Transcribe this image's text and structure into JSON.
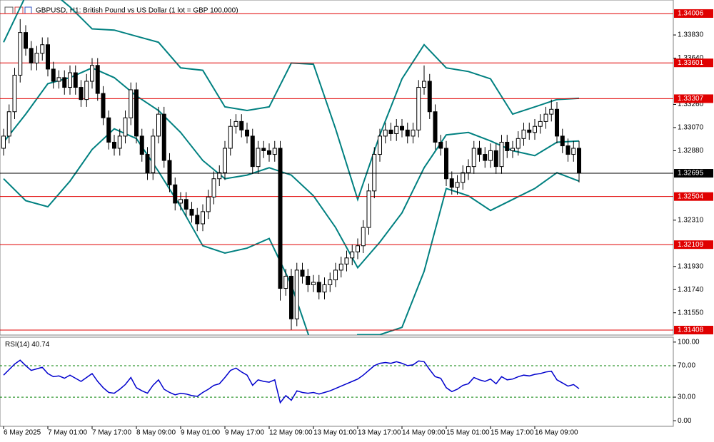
{
  "chart_data": {
    "type": "candlestick",
    "title": "GBPUSD, H1:  British Pound vs US Dollar (1 lot = GBP 100,000)",
    "open": [
      1.329,
      1.33,
      1.332,
      1.335,
      1.3385,
      1.3372,
      1.336,
      1.3368,
      1.3375,
      1.3355,
      1.3345,
      1.3348,
      1.334,
      1.3352,
      1.334,
      1.333,
      1.3345,
      1.3358,
      1.3335,
      1.3315,
      1.3295,
      1.329,
      1.33,
      1.3315,
      1.3338,
      1.33,
      1.3285,
      1.327,
      1.33,
      1.3318,
      1.328,
      1.326,
      1.3245,
      1.3248,
      1.324,
      1.3235,
      1.3228,
      1.3238,
      1.325,
      1.3265,
      1.327,
      1.329,
      1.3308,
      1.3312,
      1.3305,
      1.33,
      1.3275,
      1.329,
      1.3288,
      1.3285,
      1.329,
      1.3175,
      1.3185,
      1.315,
      1.319,
      1.3185,
      1.3178,
      1.318,
      1.3172,
      1.3178,
      1.3182,
      1.319,
      1.3195,
      1.32,
      1.3205,
      1.321,
      1.3225,
      1.3255,
      1.3285,
      1.33,
      1.3305,
      1.3302,
      1.3308,
      1.3305,
      1.33,
      1.3305,
      1.334,
      1.3345,
      1.332,
      1.3295,
      1.329,
      1.3265,
      1.3258,
      1.3262,
      1.327,
      1.3275,
      1.329,
      1.3285,
      1.328,
      1.3288,
      1.3275,
      1.3295,
      1.3288,
      1.329,
      1.3298,
      1.3305,
      1.3303,
      1.3308,
      1.3312,
      1.3318,
      1.3322,
      1.33,
      1.3292,
      1.3285,
      1.329
    ],
    "high": [
      1.3306,
      1.3326,
      1.3356,
      1.3396,
      1.3391,
      1.3378,
      1.3374,
      1.3381,
      1.3381,
      1.3361,
      1.3354,
      1.3354,
      1.3358,
      1.3358,
      1.3346,
      1.3351,
      1.3364,
      1.3364,
      1.3341,
      1.3321,
      1.3301,
      1.3306,
      1.3321,
      1.3344,
      1.3344,
      1.3306,
      1.3291,
      1.3306,
      1.3324,
      1.3324,
      1.3286,
      1.3266,
      1.3254,
      1.3254,
      1.3246,
      1.3241,
      1.3244,
      1.3256,
      1.3271,
      1.3276,
      1.3296,
      1.3314,
      1.3318,
      1.3318,
      1.3311,
      1.3306,
      1.3296,
      1.3296,
      1.3294,
      1.3296,
      1.3296,
      1.3191,
      1.3191,
      1.3196,
      1.3196,
      1.3191,
      1.3186,
      1.3186,
      1.3184,
      1.3188,
      1.3196,
      1.3201,
      1.3206,
      1.3211,
      1.3216,
      1.3231,
      1.3261,
      1.3291,
      1.3306,
      1.3311,
      1.3311,
      1.3314,
      1.3314,
      1.3311,
      1.3311,
      1.3346,
      1.3358,
      1.3351,
      1.3326,
      1.3301,
      1.3296,
      1.3271,
      1.3268,
      1.3276,
      1.3281,
      1.3296,
      1.3296,
      1.3291,
      1.3294,
      1.3294,
      1.3301,
      1.3301,
      1.3296,
      1.3304,
      1.3311,
      1.3311,
      1.3314,
      1.3318,
      1.3324,
      1.333,
      1.3328,
      1.3306,
      1.3298,
      1.3296,
      1.3296
    ],
    "low": [
      1.3284,
      1.3294,
      1.3314,
      1.3344,
      1.3366,
      1.3354,
      1.3354,
      1.3362,
      1.3349,
      1.3339,
      1.3339,
      1.3334,
      1.3334,
      1.3334,
      1.3324,
      1.3324,
      1.3339,
      1.3329,
      1.3309,
      1.3289,
      1.3284,
      1.3284,
      1.3294,
      1.3309,
      1.3294,
      1.3279,
      1.3264,
      1.3264,
      1.3294,
      1.3274,
      1.3254,
      1.3239,
      1.3239,
      1.3234,
      1.3229,
      1.3222,
      1.3222,
      1.3232,
      1.3244,
      1.3259,
      1.3264,
      1.3284,
      1.3302,
      1.3299,
      1.3294,
      1.3269,
      1.3269,
      1.3282,
      1.3279,
      1.3279,
      1.3165,
      1.3169,
      1.3141,
      1.3144,
      1.3179,
      1.3172,
      1.3172,
      1.3166,
      1.3166,
      1.3172,
      1.3176,
      1.3184,
      1.3189,
      1.3194,
      1.3199,
      1.3204,
      1.3219,
      1.3249,
      1.3279,
      1.3294,
      1.3296,
      1.3296,
      1.3299,
      1.3294,
      1.3294,
      1.3299,
      1.3334,
      1.3314,
      1.3289,
      1.3284,
      1.3259,
      1.3252,
      1.3252,
      1.3256,
      1.3264,
      1.3269,
      1.3279,
      1.3274,
      1.3274,
      1.3269,
      1.3269,
      1.3282,
      1.3282,
      1.3284,
      1.3292,
      1.3297,
      1.3297,
      1.3302,
      1.3306,
      1.3312,
      1.3294,
      1.3286,
      1.3279,
      1.3279,
      1.3262
    ],
    "close": [
      1.33,
      1.332,
      1.335,
      1.3385,
      1.3372,
      1.336,
      1.3368,
      1.3375,
      1.3355,
      1.3345,
      1.3348,
      1.334,
      1.3352,
      1.334,
      1.333,
      1.3345,
      1.3358,
      1.3335,
      1.3315,
      1.3295,
      1.329,
      1.33,
      1.3315,
      1.3338,
      1.33,
      1.3285,
      1.327,
      1.33,
      1.3318,
      1.328,
      1.326,
      1.3245,
      1.3248,
      1.324,
      1.3235,
      1.3228,
      1.3238,
      1.325,
      1.3265,
      1.327,
      1.329,
      1.3308,
      1.3312,
      1.3305,
      1.33,
      1.3275,
      1.329,
      1.3288,
      1.3285,
      1.329,
      1.3175,
      1.3185,
      1.315,
      1.319,
      1.3185,
      1.3178,
      1.318,
      1.3172,
      1.3178,
      1.3182,
      1.319,
      1.3195,
      1.32,
      1.3205,
      1.321,
      1.3225,
      1.3255,
      1.3285,
      1.33,
      1.3305,
      1.3302,
      1.3308,
      1.3305,
      1.33,
      1.3305,
      1.334,
      1.3345,
      1.332,
      1.3295,
      1.329,
      1.3265,
      1.3258,
      1.3262,
      1.327,
      1.3275,
      1.329,
      1.3285,
      1.328,
      1.3288,
      1.3275,
      1.3295,
      1.3288,
      1.329,
      1.3298,
      1.3305,
      1.3303,
      1.3308,
      1.3312,
      1.3318,
      1.3322,
      1.33,
      1.3292,
      1.3285,
      1.329,
      1.32695
    ],
    "up_color": "#ffffff",
    "down_color": "#000000",
    "xlim": [
      -0.645,
      121.03
    ],
    "xticks": [
      {
        "value": 0,
        "label": "6 May 2025"
      },
      {
        "value": 8,
        "label": "7 May 01:00"
      },
      {
        "value": 16,
        "label": "7 May 17:00"
      },
      {
        "value": 24,
        "label": "8 May 09:00"
      },
      {
        "value": 32,
        "label": "9 May 01:00"
      },
      {
        "value": 40,
        "label": "9 May 17:00"
      },
      {
        "value": 48,
        "label": "12 May 09:00"
      },
      {
        "value": 56,
        "label": "13 May 01:00"
      },
      {
        "value": 64,
        "label": "13 May 17:00"
      },
      {
        "value": 72,
        "label": "14 May 09:00"
      },
      {
        "value": 80,
        "label": "15 May 01:00"
      },
      {
        "value": 88,
        "label": "15 May 17:00"
      },
      {
        "value": 96,
        "label": "16 May 09:00"
      }
    ],
    "ylim": [
      1.31367,
      1.34117
    ],
    "yticks": [
      {
        "value": 1.3383,
        "label": "1.33830"
      },
      {
        "value": 1.3364,
        "label": "1.33640"
      },
      {
        "value": 1.3326,
        "label": "1.33260"
      },
      {
        "value": 1.3307,
        "label": "1.33070"
      },
      {
        "value": 1.3288,
        "label": "1.32880"
      },
      {
        "value": 1.3231,
        "label": "1.32310"
      },
      {
        "value": 1.3193,
        "label": "1.31930"
      },
      {
        "value": 1.3174,
        "label": "1.31740"
      },
      {
        "value": 1.3155,
        "label": "1.31550"
      }
    ],
    "levels": {
      "color": "#e00000",
      "values": [
        1.34006,
        1.33601,
        1.33307,
        1.32504,
        1.32109,
        1.31408
      ]
    },
    "bands": {
      "color": "#008080",
      "x": [
        0,
        4,
        8,
        12,
        16,
        20,
        24,
        28,
        32,
        36,
        40,
        44,
        48,
        52,
        56,
        60,
        64,
        68,
        72,
        76,
        80,
        84,
        88,
        92,
        96,
        100,
        104
      ],
      "upper": [
        1.3377,
        1.3415,
        1.3421,
        1.3406,
        1.3388,
        1.3387,
        1.3382,
        1.3377,
        1.3356,
        1.3354,
        1.3324,
        1.3321,
        1.3324,
        1.336,
        1.3359,
        1.3306,
        1.3248,
        1.3301,
        1.3347,
        1.3375,
        1.3356,
        1.3353,
        1.3347,
        1.3318,
        1.3324,
        1.333,
        1.3331
      ],
      "middle": [
        1.3295,
        1.3318,
        1.3343,
        1.3348,
        1.3356,
        1.3348,
        1.3333,
        1.3321,
        1.3303,
        1.328,
        1.3265,
        1.3268,
        1.3274,
        1.3268,
        1.3251,
        1.3225,
        1.3192,
        1.3213,
        1.3237,
        1.3274,
        1.3301,
        1.3303,
        1.3296,
        1.3288,
        1.3284,
        1.3295,
        1.3296
      ],
      "lower": [
        1.3265,
        1.3247,
        1.3242,
        1.3263,
        1.3289,
        1.3306,
        1.3298,
        1.3271,
        1.3242,
        1.321,
        1.3204,
        1.3208,
        1.3216,
        1.3178,
        1.3125,
        1.3084,
        1.3137,
        1.3137,
        1.3143,
        1.3189,
        1.3257,
        1.3251,
        1.3239,
        1.3248,
        1.3257,
        1.327,
        1.3263
      ]
    },
    "rsi": {
      "title": "RSI(14)",
      "color": "#0000cd",
      "level_color": "#008000",
      "values": [
        58,
        65,
        72,
        77,
        70,
        64,
        66,
        68,
        60,
        56,
        57,
        54,
        58,
        54,
        50,
        55,
        60,
        50,
        42,
        36,
        35,
        40,
        46,
        55,
        42,
        38,
        35,
        45,
        52,
        40,
        36,
        33,
        35,
        34,
        32,
        31,
        36,
        40,
        45,
        47,
        55,
        64,
        67,
        62,
        58,
        45,
        52,
        50,
        49,
        52,
        23,
        32,
        26,
        38,
        36,
        35,
        36,
        34,
        36,
        38,
        41,
        44,
        47,
        50,
        53,
        58,
        64,
        70,
        73,
        74,
        73,
        75,
        73,
        70,
        71,
        76,
        75,
        65,
        56,
        54,
        42,
        37,
        40,
        45,
        47,
        55,
        52,
        50,
        53,
        47,
        56,
        52,
        53,
        56,
        58,
        57,
        59,
        60,
        62,
        63,
        52,
        48,
        44,
        46,
        40.74
      ],
      "ylim": [
        -6.2,
        104.4
      ],
      "yticks": [
        {
          "value": 100,
          "label": "100.00"
        },
        {
          "value": 70,
          "label": "70.00"
        },
        {
          "value": 30,
          "label": "30.00"
        },
        {
          "value": 0,
          "label": "0.00"
        }
      ],
      "levels": [
        70,
        30
      ]
    }
  }
}
